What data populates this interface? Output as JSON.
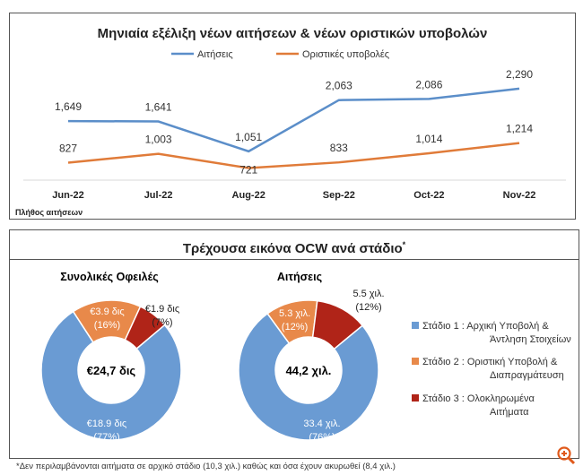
{
  "line_chart_data": null,
  "chart_data": [
    {
      "type": "line",
      "title": "Μηνιαία εξέλιξη νέων αιτήσεων & νέων οριστικών υποβολών",
      "categories": [
        "Jun-22",
        "Jul-22",
        "Aug-22",
        "Sep-22",
        "Oct-22",
        "Nov-22"
      ],
      "series": [
        {
          "name": "Αιτήσεις",
          "values": [
            1649,
            1641,
            1051,
            2063,
            2086,
            2290
          ],
          "labels": [
            "1,649",
            "1,641",
            "1,051",
            "2,063",
            "2,086",
            "2,290"
          ],
          "color": "#5b8ec9"
        },
        {
          "name": "Οριστικές υποβολές",
          "values": [
            827,
            1003,
            721,
            833,
            1014,
            1214
          ],
          "labels": [
            "827",
            "1,003",
            "721",
            "833",
            "1,014",
            "1,214"
          ],
          "color": "#e07b39"
        }
      ],
      "ylabel": "Πλήθος αιτήσεων",
      "legend": "top",
      "grid": false
    },
    {
      "type": "pie",
      "subtype": "donut",
      "title": "Συνολικές Οφειλές",
      "center_label": "€24,7 δις",
      "slices": [
        {
          "label": "€3.9 δις",
          "pct": "(16%)",
          "value": 16,
          "color": "#e8894a"
        },
        {
          "label": "€1.9 δις",
          "pct": "(7%)",
          "value": 7,
          "color": "#b02418"
        },
        {
          "label": "€18.9 δις",
          "pct": "(77%)",
          "value": 77,
          "color": "#6a9bd3"
        }
      ]
    },
    {
      "type": "pie",
      "subtype": "donut",
      "title": "Αιτήσεις",
      "center_label": "44,2 χιλ.",
      "slices": [
        {
          "label": "5.3 χιλ.",
          "pct": "(12%)",
          "value": 12,
          "color": "#e8894a"
        },
        {
          "label": "5.5 χιλ.",
          "pct": "(12%)",
          "value": 12,
          "color": "#b02418"
        },
        {
          "label": "33.4 χιλ.",
          "pct": "(76%)",
          "value": 76,
          "color": "#6a9bd3"
        }
      ]
    }
  ],
  "panel2": {
    "title": "Τρέχουσα εικόνα OCW ανά στάδιο",
    "title_mark": "*",
    "legend": [
      {
        "l1": "Στάδιο 1 : Αρχική Υποβολή &",
        "l2": "Άντληση Στοιχείων",
        "color": "#6a9bd3"
      },
      {
        "l1": "Στάδιο 2 : Οριστική Υποβολή &",
        "l2": "Διαπραγμάτευση",
        "color": "#e8894a"
      },
      {
        "l1": "Στάδιο 3 : Ολοκληρωμένα",
        "l2": "Αιτήματα",
        "color": "#b02418"
      }
    ]
  },
  "footnote": "*Δεν περιλαμβάνονται αιτήματα σε αρχικό στάδιο (10,3 χιλ.) καθώς και όσα έχουν ακυρωθεί (8,4 χιλ.)",
  "zoom_icon": "magnifier-plus-icon"
}
